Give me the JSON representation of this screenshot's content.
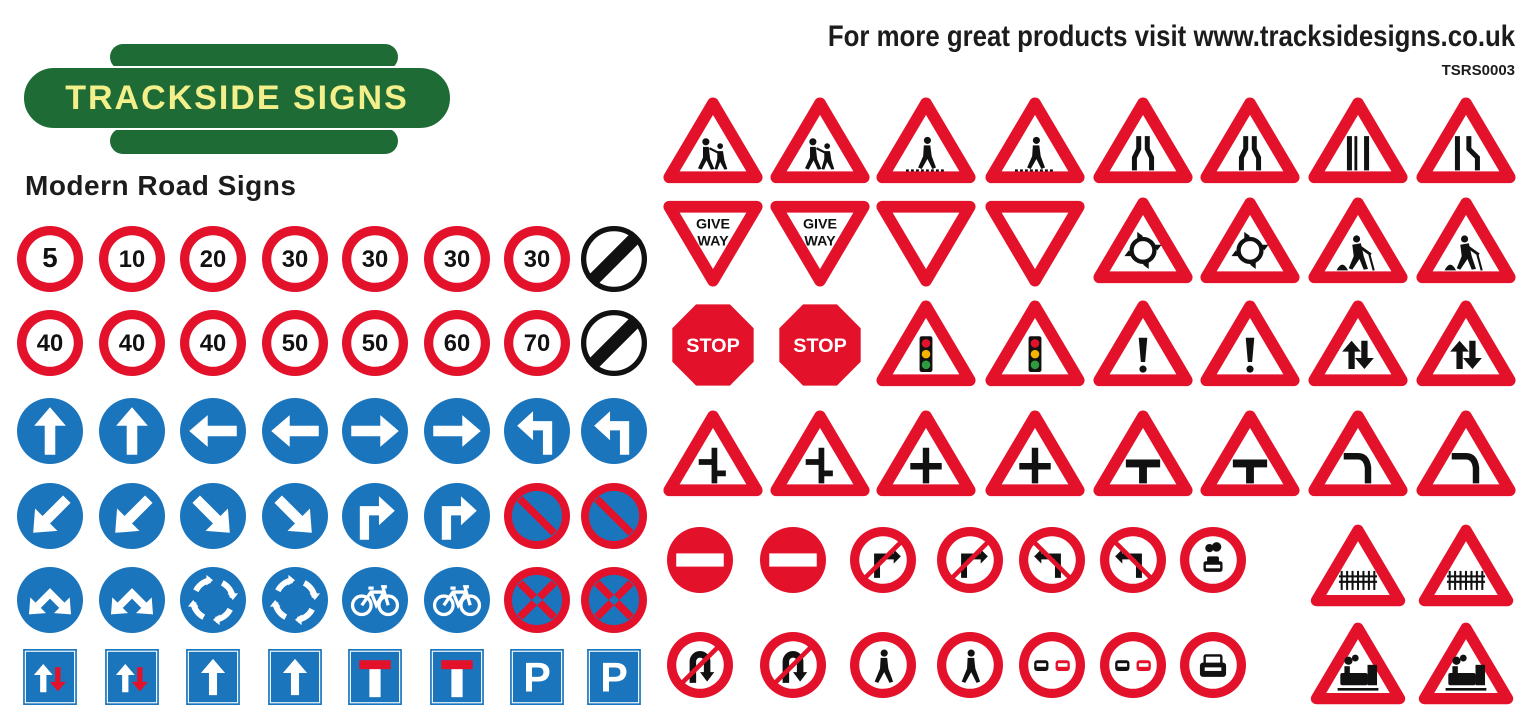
{
  "header": {
    "brand": "TRACKSIDE SIGNS",
    "title": "Modern Road Signs",
    "promo": "For more great products visit www.tracksidesigns.co.uk",
    "code": "TSRS0003"
  },
  "colors": {
    "red": "#e4112b",
    "blue": "#1b75bc",
    "green": "#1f6b35",
    "yellow": "#f3ef8a",
    "black": "#111111"
  },
  "left_rows": [
    [
      {
        "type": "speed",
        "text": "5"
      },
      {
        "type": "speed",
        "text": "10"
      },
      {
        "type": "speed",
        "text": "20"
      },
      {
        "type": "speed",
        "text": "30"
      },
      {
        "type": "speed",
        "text": "30"
      },
      {
        "type": "speed",
        "text": "30"
      },
      {
        "type": "speed",
        "text": "30"
      },
      {
        "type": "national-speed-limit"
      }
    ],
    [
      {
        "type": "speed",
        "text": "40"
      },
      {
        "type": "speed",
        "text": "40"
      },
      {
        "type": "speed",
        "text": "40"
      },
      {
        "type": "speed",
        "text": "50"
      },
      {
        "type": "speed",
        "text": "50"
      },
      {
        "type": "speed",
        "text": "60"
      },
      {
        "type": "speed",
        "text": "70"
      },
      {
        "type": "national-speed-limit"
      }
    ],
    [
      {
        "type": "blue",
        "icon": "arrow-up"
      },
      {
        "type": "blue",
        "icon": "arrow-up"
      },
      {
        "type": "blue",
        "icon": "arrow-left"
      },
      {
        "type": "blue",
        "icon": "arrow-left"
      },
      {
        "type": "blue",
        "icon": "arrow-right"
      },
      {
        "type": "blue",
        "icon": "arrow-right"
      },
      {
        "type": "blue",
        "icon": "turn-left"
      },
      {
        "type": "blue",
        "icon": "turn-left"
      }
    ],
    [
      {
        "type": "blue",
        "icon": "arrow-down-left"
      },
      {
        "type": "blue",
        "icon": "arrow-down-left"
      },
      {
        "type": "blue",
        "icon": "arrow-down-right"
      },
      {
        "type": "blue",
        "icon": "arrow-down-right"
      },
      {
        "type": "blue",
        "icon": "turn-right"
      },
      {
        "type": "blue",
        "icon": "turn-right"
      },
      {
        "type": "no-waiting"
      },
      {
        "type": "no-waiting"
      }
    ],
    [
      {
        "type": "blue",
        "icon": "pass-either-side"
      },
      {
        "type": "blue",
        "icon": "pass-either-side"
      },
      {
        "type": "blue",
        "icon": "mini-roundabout"
      },
      {
        "type": "blue",
        "icon": "mini-roundabout"
      },
      {
        "type": "blue",
        "icon": "bicycle"
      },
      {
        "type": "blue",
        "icon": "bicycle"
      },
      {
        "type": "no-stopping"
      },
      {
        "type": "no-stopping"
      }
    ],
    [
      {
        "type": "square",
        "icon": "priority-oncoming"
      },
      {
        "type": "square",
        "icon": "priority-oncoming"
      },
      {
        "type": "square",
        "icon": "arrow-up"
      },
      {
        "type": "square",
        "icon": "arrow-up"
      },
      {
        "type": "square",
        "icon": "no-through-road",
        "text": "T"
      },
      {
        "type": "square",
        "icon": "no-through-road",
        "text": "T"
      },
      {
        "type": "square",
        "icon": "parking",
        "text": "P"
      },
      {
        "type": "square",
        "icon": "parking",
        "text": "P"
      }
    ]
  ],
  "right_rows": [
    [
      {
        "type": "triangle",
        "icon": "school-children"
      },
      {
        "type": "triangle",
        "icon": "school-children"
      },
      {
        "type": "triangle",
        "icon": "pedestrian-crossing"
      },
      {
        "type": "triangle",
        "icon": "pedestrian-crossing"
      },
      {
        "type": "triangle",
        "icon": "road-narrows-both"
      },
      {
        "type": "triangle",
        "icon": "road-narrows-both"
      },
      {
        "type": "triangle",
        "icon": "dual-carriageway-ends"
      },
      {
        "type": "triangle",
        "icon": "road-narrows-right"
      }
    ],
    [
      {
        "type": "give-way",
        "text": "GIVE WAY"
      },
      {
        "type": "give-way",
        "text": "GIVE WAY"
      },
      {
        "type": "give-way"
      },
      {
        "type": "give-way"
      },
      {
        "type": "triangle",
        "icon": "roundabout"
      },
      {
        "type": "triangle",
        "icon": "roundabout"
      },
      {
        "type": "triangle",
        "icon": "roadworks"
      },
      {
        "type": "triangle",
        "icon": "roadworks"
      }
    ],
    [
      {
        "type": "stop",
        "text": "STOP"
      },
      {
        "type": "stop",
        "text": "STOP"
      },
      {
        "type": "triangle",
        "icon": "traffic-signals"
      },
      {
        "type": "triangle",
        "icon": "traffic-signals"
      },
      {
        "type": "triangle",
        "icon": "danger"
      },
      {
        "type": "triangle",
        "icon": "danger"
      },
      {
        "type": "triangle",
        "icon": "two-way-traffic"
      },
      {
        "type": "triangle",
        "icon": "two-way-traffic"
      }
    ],
    [
      {
        "type": "triangle",
        "icon": "staggered-junction"
      },
      {
        "type": "triangle",
        "icon": "staggered-junction"
      },
      {
        "type": "triangle",
        "icon": "crossroads"
      },
      {
        "type": "triangle",
        "icon": "crossroads"
      },
      {
        "type": "triangle",
        "icon": "t-junction"
      },
      {
        "type": "triangle",
        "icon": "t-junction"
      },
      {
        "type": "triangle",
        "icon": "bend"
      },
      {
        "type": "triangle",
        "icon": "bend"
      }
    ],
    [
      {
        "type": "no-entry"
      },
      {
        "type": "no-entry"
      },
      {
        "type": "prohibition",
        "icon": "no-right-turn"
      },
      {
        "type": "prohibition",
        "icon": "no-right-turn"
      },
      {
        "type": "prohibition",
        "icon": "no-left-turn"
      },
      {
        "type": "prohibition",
        "icon": "no-left-turn"
      },
      {
        "type": "prohibition",
        "icon": "no-motor-vehicles"
      },
      {
        "type": "triangle",
        "icon": "level-crossing-gate"
      },
      {
        "type": "triangle",
        "icon": "level-crossing-gate"
      }
    ],
    [
      {
        "type": "prohibition",
        "icon": "no-u-turn"
      },
      {
        "type": "prohibition",
        "icon": "no-u-turn"
      },
      {
        "type": "prohibition",
        "icon": "no-pedestrians"
      },
      {
        "type": "prohibition",
        "icon": "no-pedestrians"
      },
      {
        "type": "prohibition",
        "icon": "no-overtaking"
      },
      {
        "type": "prohibition",
        "icon": "no-overtaking"
      },
      {
        "type": "prohibition",
        "icon": "no-motor-cars"
      },
      {
        "type": "triangle",
        "icon": "level-crossing-no-gate"
      },
      {
        "type": "triangle",
        "icon": "level-crossing-no-gate"
      }
    ]
  ]
}
